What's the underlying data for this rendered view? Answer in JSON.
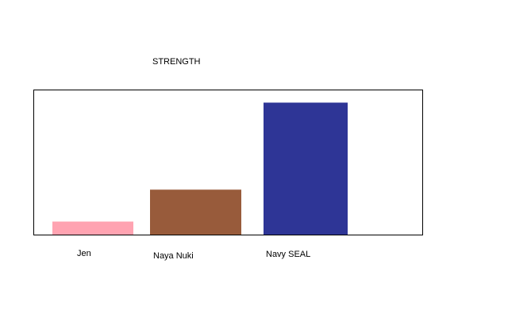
{
  "chart_data": {
    "type": "bar",
    "title": "STRENGTH",
    "categories": [
      "Jen",
      "Naya Nuki",
      "Navy SEAL"
    ],
    "values": [
      9,
      31,
      91
    ],
    "colors": [
      "#ffa3b1",
      "#985b3b",
      "#2e3596"
    ],
    "ylim": [
      0,
      100
    ]
  }
}
